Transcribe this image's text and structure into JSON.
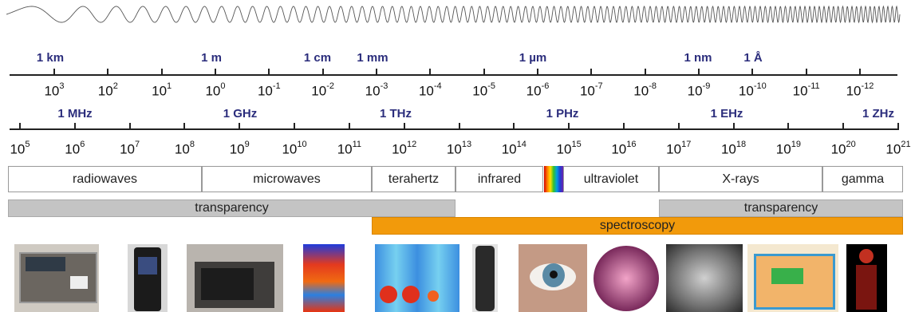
{
  "wavelength_units": [
    "1 km",
    "1 m",
    "1 cm",
    "1 mm",
    "1 µm",
    "1 nm",
    "1 Å"
  ],
  "wavelength_exponents": [
    "3",
    "2",
    "1",
    "0",
    "-1",
    "-2",
    "-3",
    "-4",
    "-5",
    "-6",
    "-7",
    "-8",
    "-9",
    "-10",
    "-11",
    "-12"
  ],
  "frequency_units": [
    "1 MHz",
    "1 GHz",
    "1 THz",
    "1 PHz",
    "1 EHz",
    "1 ZHz"
  ],
  "frequency_exponents": [
    "5",
    "6",
    "7",
    "8",
    "9",
    "10",
    "11",
    "12",
    "13",
    "14",
    "15",
    "16",
    "17",
    "18",
    "19",
    "20",
    "21"
  ],
  "tick_base": "10",
  "bands": [
    "radiowaves",
    "microwaves",
    "terahertz",
    "infrared",
    "ultraviolet",
    "X-rays",
    "gamma"
  ],
  "bars": {
    "transparency_low": "transparency",
    "transparency_high": "transparency",
    "spectroscopy": "spectroscopy"
  },
  "colors": {
    "unit_label": "#2b2d7c",
    "transparency_bar": "#c4c4c4",
    "spectroscopy_bar": "#f29a0b"
  },
  "photos": [
    "radio",
    "mobile-phone",
    "microwave-oven",
    "thermal-body-image",
    "terahertz-image",
    "remote-control",
    "eye",
    "chip-wafer",
    "dental-x-ray",
    "x-ray-luggage-scan",
    "pet-scan"
  ]
}
